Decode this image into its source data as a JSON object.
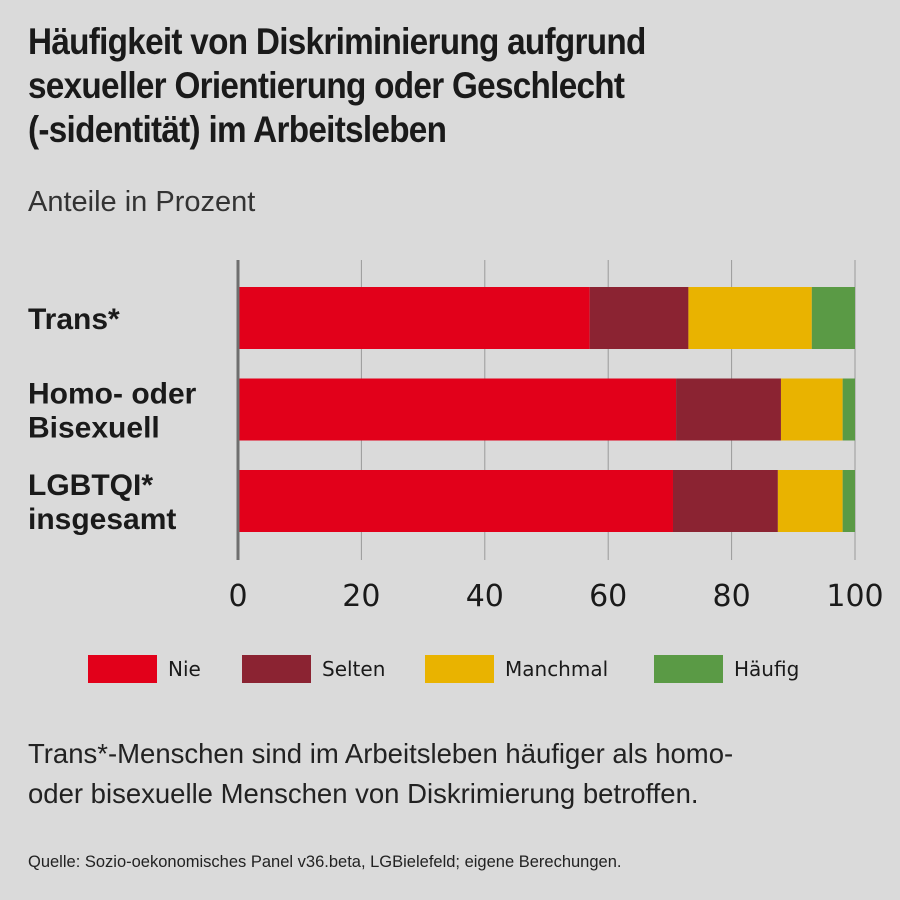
{
  "title_lines": [
    "Häufigkeit von Diskriminierung aufgrund",
    "sexueller Orientierung oder Geschlecht",
    "(-sidentität) im Arbeitsleben"
  ],
  "subtitle": "Anteile in Prozent",
  "chart_data": {
    "type": "bar",
    "orientation": "horizontal",
    "stacked": true,
    "title": "Häufigkeit von Diskriminierung aufgrund sexueller Orientierung oder Geschlecht (-sidentität) im Arbeitsleben",
    "subtitle": "Anteile in Prozent",
    "categories": [
      [
        "Trans*"
      ],
      [
        "Homo- oder",
        "Bisexuell"
      ],
      [
        "LGBTQI*",
        "insgesamt"
      ]
    ],
    "series": [
      {
        "name": "Nie",
        "color": "#e2001a",
        "values": [
          57,
          71,
          70.5
        ]
      },
      {
        "name": "Selten",
        "color": "#8b2332",
        "values": [
          16,
          17,
          17
        ]
      },
      {
        "name": "Manchmal",
        "color": "#e9b300",
        "values": [
          20,
          10,
          10.5
        ]
      },
      {
        "name": "Häufig",
        "color": "#5a9a45",
        "values": [
          7,
          2,
          2
        ]
      }
    ],
    "xlim": [
      0,
      100
    ],
    "xticks": [
      "0",
      "20",
      "40",
      "60",
      "80",
      "100"
    ],
    "grid": true,
    "legend_position": "bottom"
  },
  "note_lines": [
    "Trans*-Menschen sind im Arbeitsleben häufiger als homo-",
    "oder bisexuelle Menschen von Diskrimierung betroffen."
  ],
  "source": "Quelle: Sozio-oekonomisches Panel v36.beta, LGBielefeld; eigene Berechungen."
}
